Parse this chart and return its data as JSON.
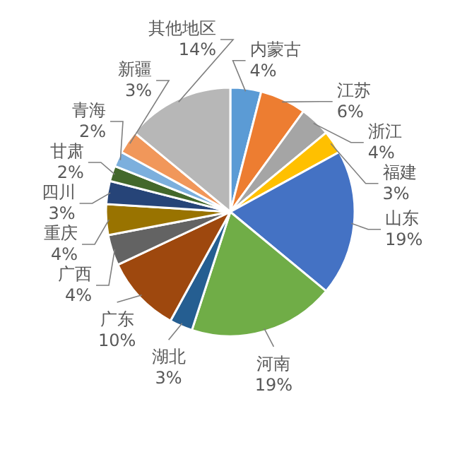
{
  "chart_data": {
    "type": "pie",
    "categories": [
      "内蒙古",
      "江苏",
      "浙江",
      "福建",
      "山东",
      "河南",
      "湖北",
      "广东",
      "广西",
      "重庆",
      "四川",
      "甘肃",
      "青海",
      "新疆",
      "其他地区"
    ],
    "values": [
      4,
      6,
      4,
      3,
      19,
      19,
      3,
      10,
      4,
      4,
      3,
      2,
      2,
      3,
      14
    ],
    "value_labels": [
      "4%",
      "6%",
      "4%",
      "3%",
      "19%",
      "19%",
      "3%",
      "10%",
      "4%",
      "4%",
      "3%",
      "2%",
      "2%",
      "3%",
      "14%"
    ],
    "colors": [
      "#5b9bd5",
      "#ed7d31",
      "#a5a5a5",
      "#ffc000",
      "#4472c4",
      "#70ad47",
      "#255e91",
      "#9e480e",
      "#636363",
      "#997300",
      "#264478",
      "#43682b",
      "#7cafdd",
      "#f1975a",
      "#b7b7b7"
    ]
  }
}
